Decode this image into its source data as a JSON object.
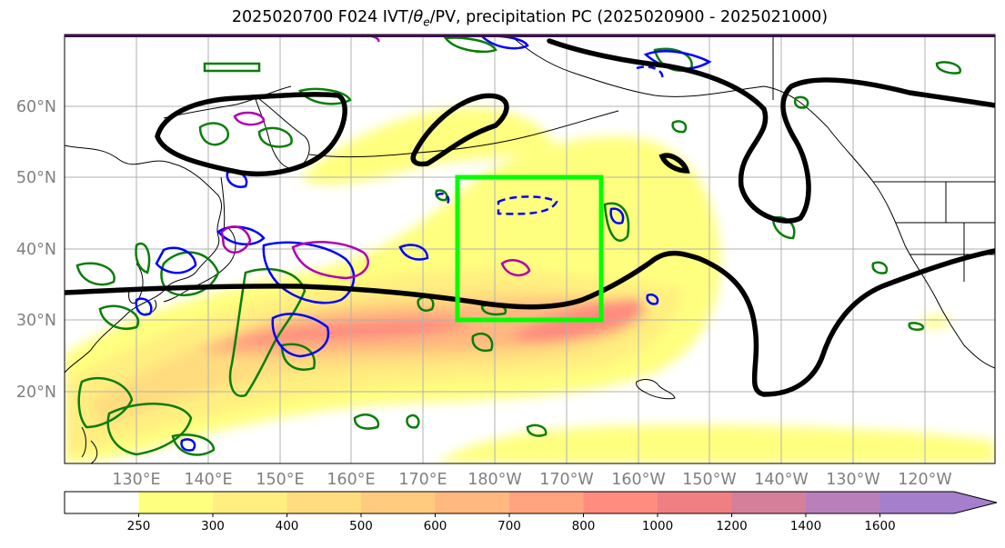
{
  "title": "2025020700 F024 IVT/θe/PV, precipitation PC (2025020900 - 2025021000)",
  "colors": {
    "ivt_levels": [
      "#ffffff",
      "#ffff7f",
      "#ffef80",
      "#ffdd7f",
      "#ffcb7f",
      "#ffb87f",
      "#ffa47f",
      "#ff8c7f",
      "#f07f84",
      "#d67f9b",
      "#b87fbb",
      "#a57fcc"
    ],
    "theta_e_contour": "#000000",
    "precip_contour": "#0a7d0a",
    "pv_positive_contour": "#0000ff",
    "pv_special_contour": "#b000b0",
    "target_box": "#00ff00",
    "coastline": "#000000",
    "grid": "#b0b0b0"
  },
  "map": {
    "latitude_labels": [
      "60°N",
      "50°N",
      "40°N",
      "30°N",
      "20°N"
    ],
    "longitude_labels": [
      "130°E",
      "140°E",
      "150°E",
      "160°E",
      "170°E",
      "180°W",
      "170°W",
      "160°W",
      "150°W",
      "140°W",
      "130°W",
      "120°W"
    ]
  },
  "colorbar": {
    "tick_labels": [
      "250",
      "300",
      "400",
      "500",
      "600",
      "700",
      "800",
      "1000",
      "1200",
      "1400",
      "1600"
    ],
    "extend": "max"
  }
}
